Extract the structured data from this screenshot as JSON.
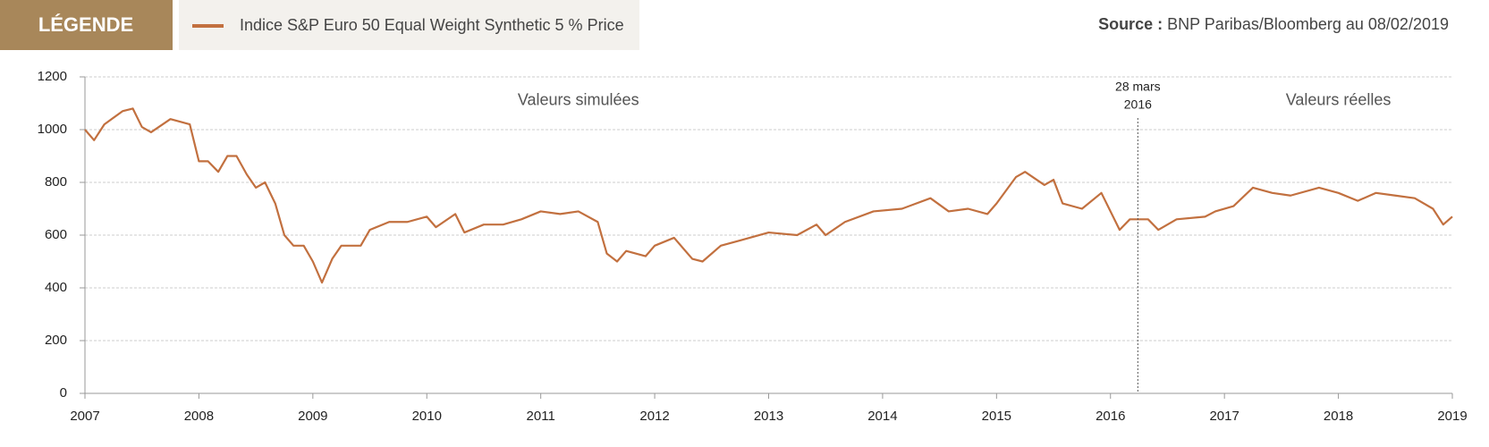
{
  "chart_data": {
    "type": "line",
    "legend_title": "LÉGENDE",
    "source_label": "Source :",
    "source_text": "BNP Paribas/Bloomberg au 08/02/2019",
    "annotations": [
      {
        "text": "Valeurs simulées",
        "x": 2011.33,
        "y": 1110
      },
      {
        "text": "Valeurs réelles",
        "x": 2018.0,
        "y": 1110
      }
    ],
    "vline": {
      "x": 2016.24,
      "label_lines": [
        "28 mars",
        "2016"
      ]
    },
    "x": [
      2007.0,
      2007.08,
      2007.17,
      2007.33,
      2007.42,
      2007.5,
      2007.58,
      2007.75,
      2007.92,
      2008.0,
      2008.08,
      2008.17,
      2008.25,
      2008.33,
      2008.42,
      2008.5,
      2008.58,
      2008.67,
      2008.75,
      2008.83,
      2008.92,
      2009.0,
      2009.08,
      2009.17,
      2009.25,
      2009.42,
      2009.5,
      2009.67,
      2009.83,
      2010.0,
      2010.08,
      2010.25,
      2010.33,
      2010.5,
      2010.67,
      2010.83,
      2011.0,
      2011.17,
      2011.33,
      2011.5,
      2011.58,
      2011.67,
      2011.75,
      2011.92,
      2012.0,
      2012.17,
      2012.33,
      2012.42,
      2012.58,
      2012.75,
      2013.0,
      2013.25,
      2013.42,
      2013.5,
      2013.67,
      2013.92,
      2014.17,
      2014.42,
      2014.58,
      2014.75,
      2014.92,
      2015.0,
      2015.17,
      2015.25,
      2015.42,
      2015.5,
      2015.58,
      2015.75,
      2015.92,
      2016.08,
      2016.17,
      2016.33,
      2016.42,
      2016.58,
      2016.83,
      2016.92,
      2017.08,
      2017.25,
      2017.42,
      2017.58,
      2017.83,
      2018.0,
      2018.17,
      2018.33,
      2018.5,
      2018.67,
      2018.83,
      2018.92,
      2019.0
    ],
    "series": [
      {
        "name": "Indice S&P Euro 50 Equal Weight Synthetic 5 % Price",
        "color": "#c2703f",
        "values": [
          1000,
          960,
          1020,
          1070,
          1080,
          1010,
          990,
          1040,
          1020,
          880,
          880,
          840,
          900,
          900,
          830,
          780,
          800,
          720,
          600,
          560,
          560,
          500,
          420,
          510,
          560,
          560,
          620,
          650,
          650,
          670,
          630,
          680,
          610,
          640,
          640,
          660,
          690,
          680,
          690,
          650,
          530,
          500,
          540,
          520,
          560,
          590,
          510,
          500,
          560,
          580,
          610,
          600,
          640,
          600,
          650,
          690,
          700,
          740,
          690,
          700,
          680,
          720,
          820,
          840,
          790,
          810,
          720,
          700,
          760,
          620,
          660,
          660,
          620,
          660,
          670,
          690,
          710,
          780,
          760,
          750,
          780,
          760,
          730,
          760,
          750,
          740,
          700,
          640,
          670
        ]
      }
    ],
    "xlim": [
      2007,
      2019
    ],
    "xticks": [
      2007,
      2008,
      2009,
      2010,
      2011,
      2012,
      2013,
      2014,
      2015,
      2016,
      2017,
      2018,
      2019
    ],
    "ylim": [
      0,
      1200
    ],
    "yticks": [
      0,
      200,
      400,
      600,
      800,
      1000,
      1200
    ],
    "grid": true
  }
}
